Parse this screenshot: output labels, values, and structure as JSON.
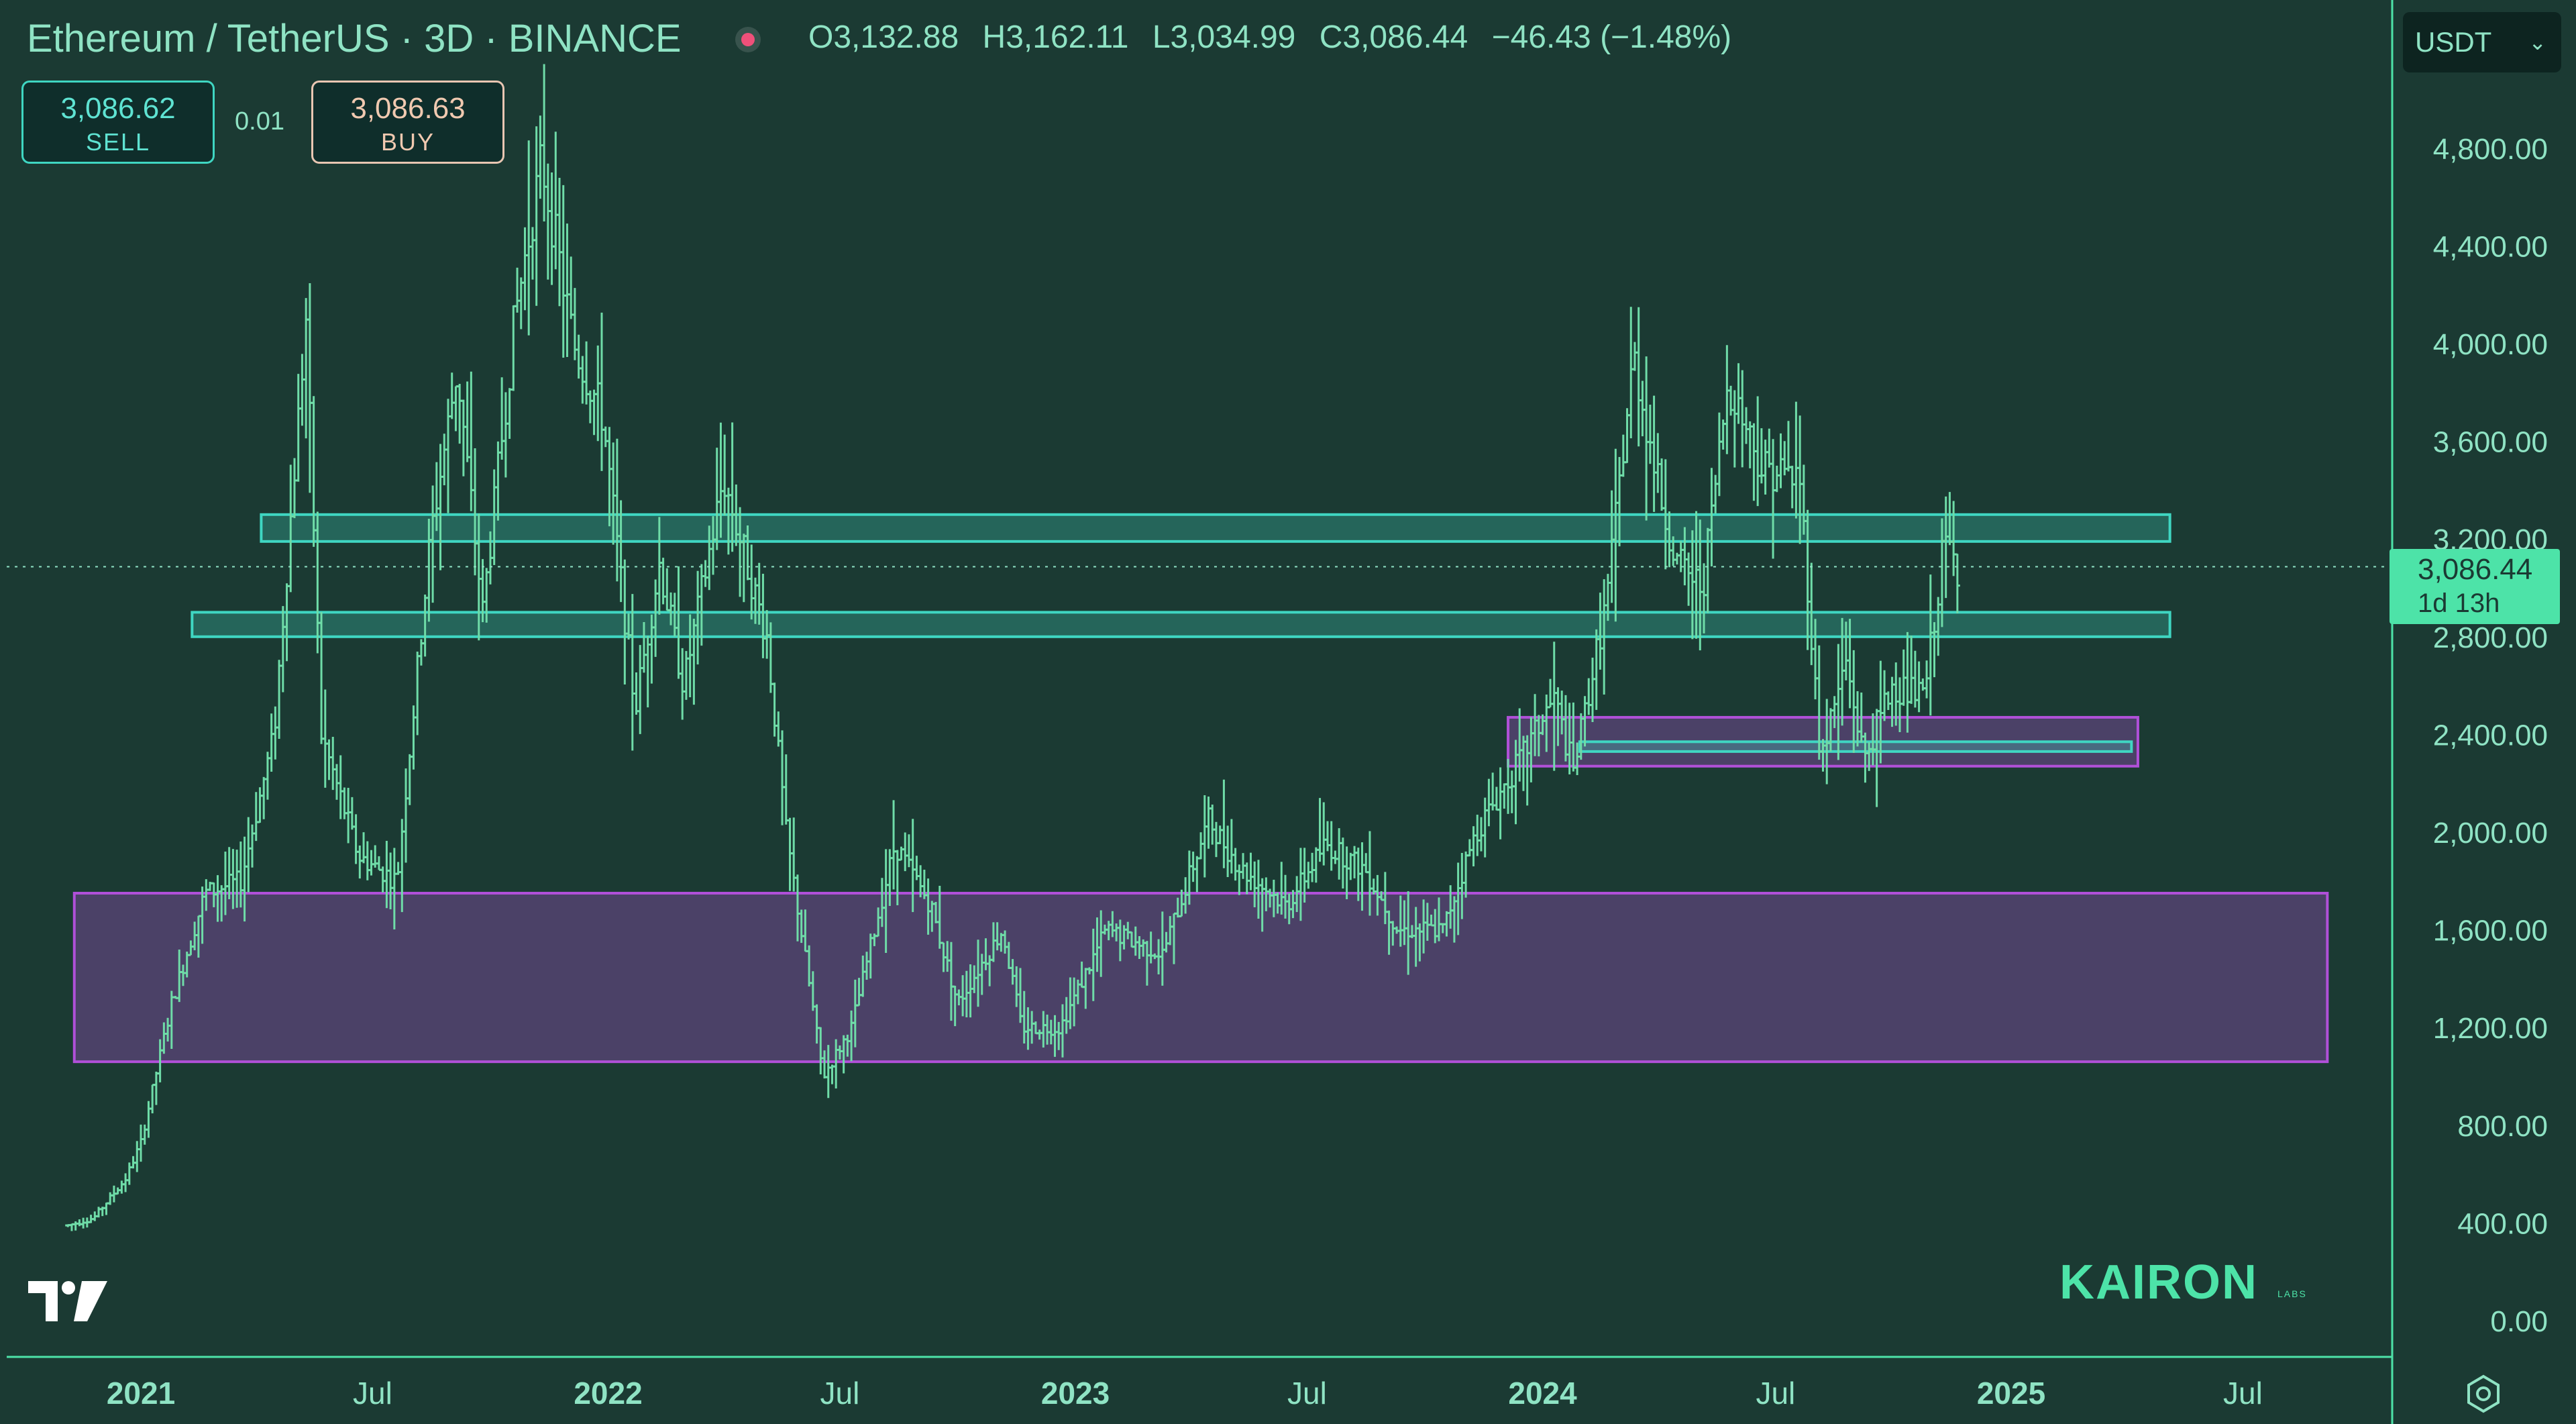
{
  "header": {
    "symbol_title": "Ethereum / TetherUS · 3D · BINANCE",
    "ohlc": {
      "open": "O3,132.88",
      "high": "H3,162.11",
      "low": "L3,034.99",
      "close": "C3,086.44",
      "change": "−46.43 (−1.48%)"
    },
    "sell_price": "3,086.62",
    "sell_label": "SELL",
    "spread": "0.01",
    "buy_price": "3,086.63",
    "buy_label": "BUY",
    "currency": "USDT",
    "currency_chevron": "⌄"
  },
  "last_price": {
    "value": "3,086.44",
    "countdown": "1d 13h"
  },
  "watermark": {
    "text": "KAIRON",
    "sub": "LABS"
  },
  "colors": {
    "background": "#1b3a33",
    "candle": "#6fdca8",
    "teal_zone": "#3fd6c2",
    "purple_zone": "#b050d8",
    "axis_text": "#8fe3c4",
    "last_price_bg": "#4de3a8"
  },
  "icons": {
    "tradingview_logo": "tradingview-logo-icon",
    "settings": "gear-icon",
    "live": "live-dot-icon"
  },
  "chart_data": {
    "type": "bar",
    "subtype": "ohlc",
    "y_axis": {
      "ticks": [
        "0.00",
        "400.00",
        "800.00",
        "1,200.00",
        "1,600.00",
        "2,000.00",
        "2,400.00",
        "2,800.00",
        "3,200.00",
        "3,600.00",
        "4,000.00",
        "4,400.00",
        "4,800.00"
      ],
      "tick_values": [
        0,
        400,
        800,
        1200,
        1600,
        2000,
        2400,
        2800,
        3200,
        3600,
        4000,
        4400,
        4800
      ],
      "range": [
        0,
        5000
      ]
    },
    "x_axis": {
      "ticks": [
        {
          "label": "2021",
          "date": "2021-01-01",
          "bold": true
        },
        {
          "label": "Jul",
          "date": "2021-07-01",
          "bold": false
        },
        {
          "label": "2022",
          "date": "2022-01-01",
          "bold": true
        },
        {
          "label": "Jul",
          "date": "2022-07-01",
          "bold": false
        },
        {
          "label": "2023",
          "date": "2023-01-01",
          "bold": true
        },
        {
          "label": "Jul",
          "date": "2023-07-01",
          "bold": false
        },
        {
          "label": "2024",
          "date": "2024-01-01",
          "bold": true
        },
        {
          "label": "Jul",
          "date": "2024-07-01",
          "bold": false
        },
        {
          "label": "2025",
          "date": "2025-01-01",
          "bold": true
        },
        {
          "label": "Jul",
          "date": "2025-07-01",
          "bold": false
        }
      ],
      "range": [
        "2020-11-05",
        "2025-09-05"
      ]
    },
    "last_price": 3086.44,
    "price_points": [
      [
        "2020-11-05",
        390
      ],
      [
        "2020-11-25",
        420
      ],
      [
        "2020-12-20",
        580
      ],
      [
        "2021-01-01",
        730
      ],
      [
        "2021-01-25",
        1300
      ],
      [
        "2021-02-20",
        1750
      ],
      [
        "2021-03-20",
        1800
      ],
      [
        "2021-04-15",
        2400
      ],
      [
        "2021-05-10",
        4100
      ],
      [
        "2021-05-22",
        2400
      ],
      [
        "2021-06-20",
        1900
      ],
      [
        "2021-07-20",
        1800
      ],
      [
        "2021-08-15",
        3200
      ],
      [
        "2021-09-05",
        3900
      ],
      [
        "2021-09-25",
        2900
      ],
      [
        "2021-10-20",
        4100
      ],
      [
        "2021-11-10",
        4750
      ],
      [
        "2021-12-05",
        4000
      ],
      [
        "2021-12-28",
        3700
      ],
      [
        "2022-01-22",
        2500
      ],
      [
        "2022-02-10",
        3100
      ],
      [
        "2022-03-01",
        2600
      ],
      [
        "2022-04-01",
        3450
      ],
      [
        "2022-05-05",
        2800
      ],
      [
        "2022-05-20",
        2000
      ],
      [
        "2022-06-18",
        1000
      ],
      [
        "2022-07-10",
        1200
      ],
      [
        "2022-08-13",
        1950
      ],
      [
        "2022-09-10",
        1700
      ],
      [
        "2022-10-01",
        1300
      ],
      [
        "2022-11-05",
        1600
      ],
      [
        "2022-11-20",
        1200
      ],
      [
        "2022-12-20",
        1200
      ],
      [
        "2023-01-25",
        1600
      ],
      [
        "2023-03-10",
        1500
      ],
      [
        "2023-04-15",
        2050
      ],
      [
        "2023-05-10",
        1850
      ],
      [
        "2023-06-15",
        1700
      ],
      [
        "2023-07-15",
        1950
      ],
      [
        "2023-08-15",
        1850
      ],
      [
        "2023-09-10",
        1600
      ],
      [
        "2023-10-15",
        1600
      ],
      [
        "2023-11-10",
        2000
      ],
      [
        "2023-12-15",
        2300
      ],
      [
        "2024-01-10",
        2550
      ],
      [
        "2024-01-25",
        2250
      ],
      [
        "2024-02-20",
        2950
      ],
      [
        "2024-03-12",
        3950
      ],
      [
        "2024-04-01",
        3400
      ],
      [
        "2024-04-15",
        3100
      ],
      [
        "2024-05-05",
        3000
      ],
      [
        "2024-05-25",
        3850
      ],
      [
        "2024-06-20",
        3500
      ],
      [
        "2024-07-20",
        3450
      ],
      [
        "2024-08-05",
        2300
      ],
      [
        "2024-08-25",
        2700
      ],
      [
        "2024-09-08",
        2300
      ],
      [
        "2024-09-30",
        2600
      ],
      [
        "2024-10-25",
        2550
      ],
      [
        "2024-11-10",
        3200
      ],
      [
        "2024-11-20",
        3086
      ]
    ],
    "zones": [
      {
        "kind": "teal",
        "y_min": 3190,
        "y_max": 3300,
        "x_start": "2021-04-05",
        "x_end": "2025-05-05"
      },
      {
        "kind": "teal",
        "y_min": 2800,
        "y_max": 2900,
        "x_start": "2021-02-10",
        "x_end": "2025-05-05"
      },
      {
        "kind": "purple",
        "y_min": 2270,
        "y_max": 2470,
        "x_start": "2023-12-05",
        "x_end": "2025-04-10"
      },
      {
        "kind": "teal",
        "y_min": 2330,
        "y_max": 2370,
        "x_start": "2024-01-30",
        "x_end": "2025-04-05"
      },
      {
        "kind": "purple",
        "y_min": 1060,
        "y_max": 1750,
        "x_start": "2020-11-10",
        "x_end": "2025-09-05"
      }
    ]
  }
}
